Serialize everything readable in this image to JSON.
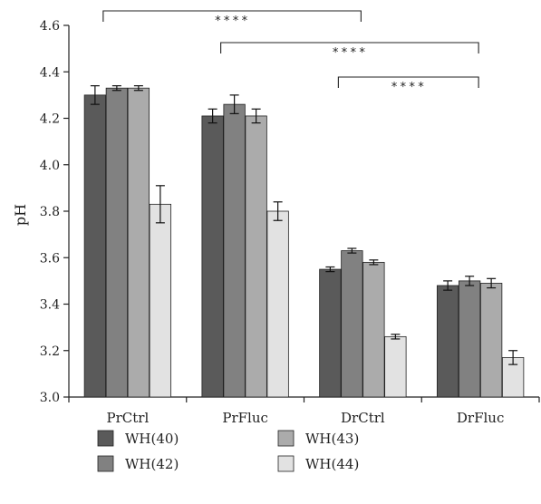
{
  "chart_data": {
    "type": "bar",
    "title": "",
    "xlabel": "",
    "ylabel": "pH",
    "ylim": [
      3.0,
      4.6
    ],
    "yticks": [
      "3.0",
      "3.2",
      "3.4",
      "3.6",
      "3.8",
      "4.0",
      "4.2",
      "4.4",
      "4.6"
    ],
    "categories": [
      "PrCtrl",
      "PrFluc",
      "DrCtrl",
      "DrFluc"
    ],
    "series": [
      {
        "name": "WH(40)",
        "color": "#5a5a5a",
        "values": [
          4.3,
          4.21,
          3.55,
          3.48
        ],
        "errors": [
          0.04,
          0.03,
          0.01,
          0.02
        ]
      },
      {
        "name": "WH(42)",
        "color": "#818181",
        "values": [
          4.33,
          4.26,
          3.63,
          3.5
        ],
        "errors": [
          0.01,
          0.04,
          0.01,
          0.02
        ]
      },
      {
        "name": "WH(43)",
        "color": "#ababab",
        "values": [
          4.33,
          4.21,
          3.58,
          3.49
        ],
        "errors": [
          0.01,
          0.03,
          0.01,
          0.02
        ]
      },
      {
        "name": "WH(44)",
        "color": "#e2e2e2",
        "values": [
          3.83,
          3.8,
          3.26,
          3.17
        ],
        "errors": [
          0.08,
          0.04,
          0.01,
          0.03
        ]
      }
    ],
    "significance": [
      {
        "from": "PrCtrl",
        "to": "DrCtrl",
        "label": "****"
      },
      {
        "from": "PrFluc",
        "to": "DrFluc",
        "label": "****"
      },
      {
        "from": "DrCtrl",
        "to": "DrFluc",
        "label": "****"
      }
    ],
    "grid": false,
    "legend_position": "bottom-left"
  }
}
